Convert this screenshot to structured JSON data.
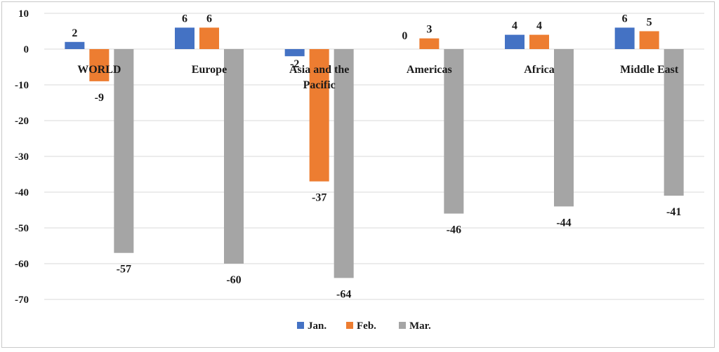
{
  "chart_data": {
    "type": "bar",
    "title": "",
    "xlabel": "",
    "ylabel": "",
    "categories": [
      "WORLD",
      "Europe",
      "Asia and the Pacific",
      "Americas",
      "Africa",
      "Middle East"
    ],
    "series": [
      {
        "name": "Jan.",
        "values": [
          2,
          6,
          -2,
          0,
          4,
          6
        ],
        "data_labels": [
          "2",
          "6",
          "-2",
          "0",
          "4",
          "6"
        ]
      },
      {
        "name": "Feb.",
        "values": [
          -9,
          6,
          -37,
          3,
          4,
          5
        ],
        "data_labels": [
          "-9",
          "6",
          "-37",
          "3",
          "4",
          "5"
        ]
      },
      {
        "name": "Mar.",
        "values": [
          -57,
          -60,
          -64,
          -46,
          -44,
          -41
        ],
        "data_labels": [
          "-57",
          "-60",
          "-64",
          "-46",
          "-44",
          "-41"
        ]
      }
    ],
    "ylim": [
      -70,
      10
    ],
    "yticks": [
      10,
      0,
      -10,
      -20,
      -30,
      -40,
      -50,
      -60,
      -70
    ],
    "ytick_labels": [
      "10",
      "0",
      "-10",
      "-20",
      "-30",
      "-40",
      "-50",
      "-60",
      "-70"
    ],
    "grid": true,
    "legend_position": "bottom",
    "colors": {
      "Jan.": "#4472C4",
      "Feb.": "#ED7D31",
      "Mar.": "#A5A5A5",
      "grid": "#d9d9d9"
    }
  }
}
